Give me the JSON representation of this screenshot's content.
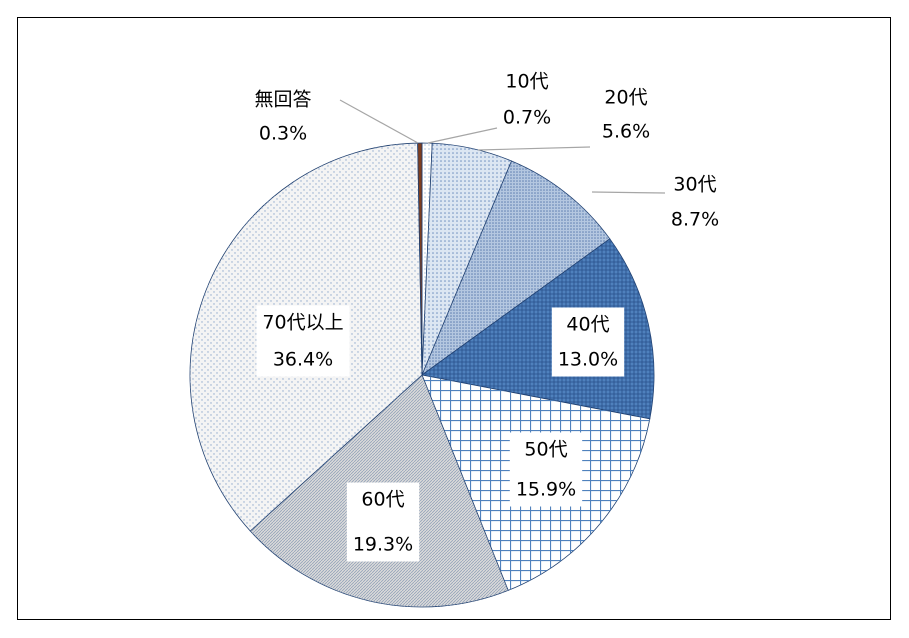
{
  "chart_data": {
    "type": "pie",
    "categories": [
      "10代",
      "20代",
      "30代",
      "40代",
      "50代",
      "60代",
      "70代以上",
      "無回答"
    ],
    "values": [
      0.7,
      5.6,
      8.7,
      13.0,
      15.9,
      19.3,
      36.4,
      0.3
    ],
    "value_labels": [
      "0.7%",
      "5.6%",
      "8.7%",
      "13.0%",
      "15.9%",
      "19.3%",
      "36.4%",
      "0.3%"
    ],
    "colors": [
      "#ffffff",
      "#dce6f2",
      "#b4c7e0",
      "#4f81bd",
      "#ffffff",
      "#d9d9d9",
      "#f4f4f4",
      "#7f3f20"
    ]
  }
}
